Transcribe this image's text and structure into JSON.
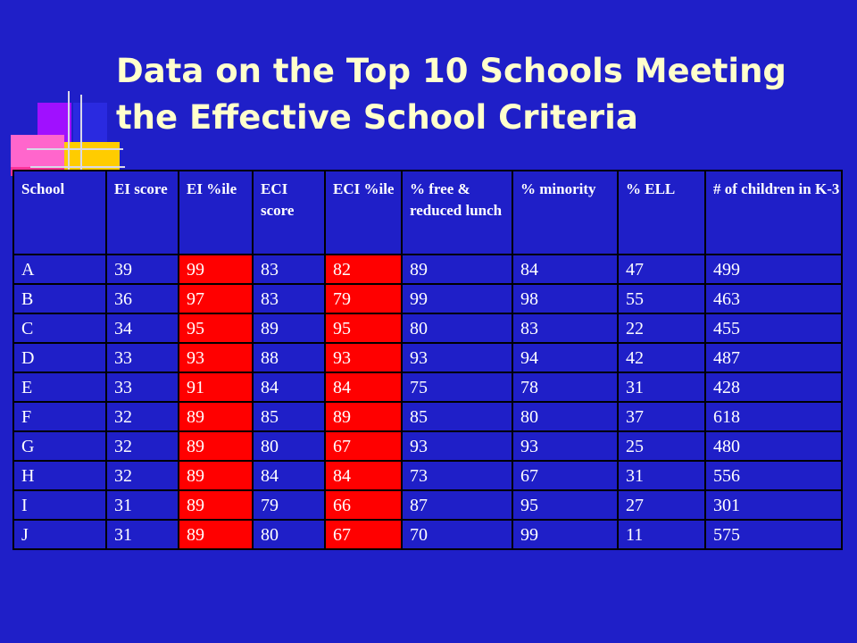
{
  "slide": {
    "title": "Data on the Top 10 Schools Meeting the Effective School Criteria",
    "colors": {
      "background": "#1f1fc8",
      "title": "#ffffcc",
      "highlight": "#ff0000",
      "text": "#ffffff"
    }
  },
  "decoration": {
    "icon": "colored-squares-crosshair-icon"
  },
  "table": {
    "headers": [
      "School",
      "EI score",
      "EI %ile",
      "ECI score",
      "ECI %ile",
      "% free & reduced lunch",
      "% minority",
      "% ELL",
      "# of children in K-3"
    ],
    "highlighted_columns": [
      "EI %ile",
      "ECI %ile"
    ],
    "rows": [
      [
        "A",
        "39",
        "99",
        "83",
        "82",
        "89",
        "84",
        "47",
        "499"
      ],
      [
        "B",
        "36",
        "97",
        "83",
        "79",
        "99",
        "98",
        "55",
        "463"
      ],
      [
        "C",
        "34",
        "95",
        "89",
        "95",
        "80",
        "83",
        "22",
        "455"
      ],
      [
        "D",
        "33",
        "93",
        "88",
        "93",
        "93",
        "94",
        "42",
        "487"
      ],
      [
        "E",
        "33",
        "91",
        "84",
        "84",
        "75",
        "78",
        "31",
        "428"
      ],
      [
        "F",
        "32",
        "89",
        "85",
        "89",
        "85",
        "80",
        "37",
        "618"
      ],
      [
        "G",
        "32",
        "89",
        "80",
        "67",
        "93",
        "93",
        "25",
        "480"
      ],
      [
        "H",
        "32",
        "89",
        "84",
        "84",
        "73",
        "67",
        "31",
        "556"
      ],
      [
        "I",
        "31",
        "89",
        "79",
        "66",
        "87",
        "95",
        "27",
        "301"
      ],
      [
        "J",
        "31",
        "89",
        "80",
        "67",
        "70",
        "99",
        "11",
        "575"
      ]
    ]
  }
}
